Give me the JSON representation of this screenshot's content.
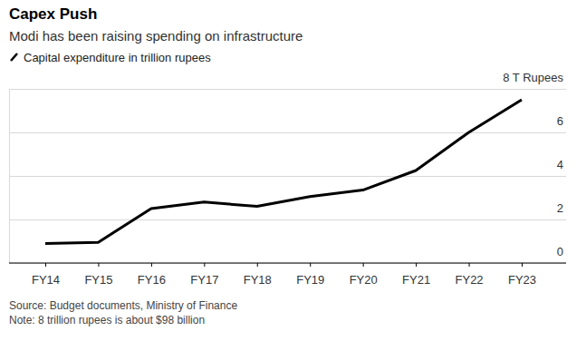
{
  "chart_data": {
    "type": "line",
    "title": "Capex Push",
    "subtitle": "Modi has been raising spending on infrastructure",
    "categories": [
      "FY14",
      "FY15",
      "FY16",
      "FY17",
      "FY18",
      "FY19",
      "FY20",
      "FY21",
      "FY22",
      "FY23"
    ],
    "series": [
      {
        "name": "Capital expenditure in trillion rupees",
        "color": "#000000",
        "values": [
          0.9,
          0.95,
          2.5,
          2.8,
          2.6,
          3.05,
          3.35,
          4.25,
          6.0,
          7.5
        ]
      }
    ],
    "ylim": [
      0,
      8
    ],
    "yticks": [
      0,
      2,
      4,
      6,
      {
        "value": 8,
        "label": "8 T Rupees"
      }
    ],
    "grid": true,
    "legend": "top-left",
    "source": "Source: Budget documents, Ministry of Finance",
    "note": "Note: 8 trillion rupees is about $98 billion"
  }
}
